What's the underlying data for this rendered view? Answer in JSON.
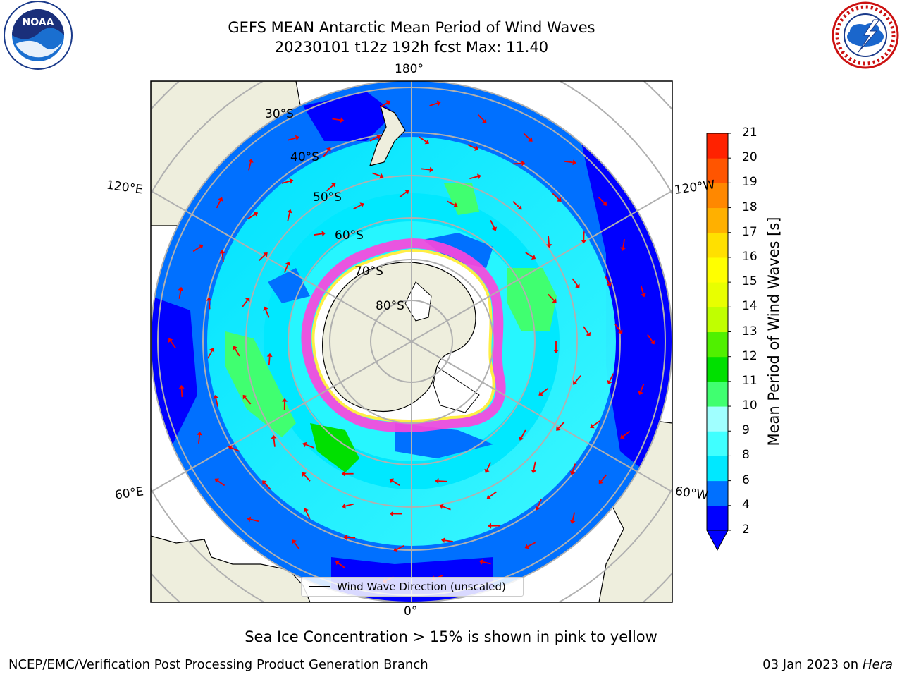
{
  "header": {
    "title_line1": "GEFS MEAN Antarctic Mean Period of Wind Waves",
    "title_line2": "20230101 t12z 192h fcst   Max: 11.40"
  },
  "map": {
    "projection": "south-polar-stereographic",
    "longitude_labels": {
      "top": "180°",
      "bottom": "0°",
      "upper_left": "120°E",
      "upper_right": "120°W",
      "lower_left": "60°E",
      "lower_right": "60°W"
    },
    "latitude_labels": [
      "30°S",
      "40°S",
      "50°S",
      "60°S",
      "70°S",
      "80°S"
    ],
    "colors": {
      "land": "#eeeedd",
      "gridline": "#b0b0b0",
      "arrow": "#ee0000",
      "sea_ice": "#ff44dd"
    }
  },
  "colorbar": {
    "title": "Mean Period of Wind Waves [s]",
    "ticks": [
      "2",
      "4",
      "6",
      "8",
      "9",
      "10",
      "11",
      "12",
      "13",
      "14",
      "15",
      "16",
      "17",
      "18",
      "19",
      "20",
      "21"
    ],
    "colors": [
      "#0000ff",
      "#0070ff",
      "#00e8ff",
      "#40ffff",
      "#a0ffff",
      "#40ff70",
      "#00e000",
      "#50f000",
      "#c0ff00",
      "#e8ff00",
      "#ffff00",
      "#ffe000",
      "#ffb000",
      "#ff8800",
      "#ff5500",
      "#ff2200"
    ],
    "extend": "min"
  },
  "legend": {
    "label": "Wind Wave Direction (unscaled)"
  },
  "footer": {
    "note": "Sea Ice Concentration > 15% is shown in pink to yellow",
    "left": "NCEP/EMC/Verification Post Processing Product Generation Branch",
    "date": "03 Jan 2023 on",
    "machine": "Hera"
  },
  "logos": {
    "noaa_text": "NOAA",
    "nws_text": "NATIONAL WEATHER SERVICE"
  }
}
